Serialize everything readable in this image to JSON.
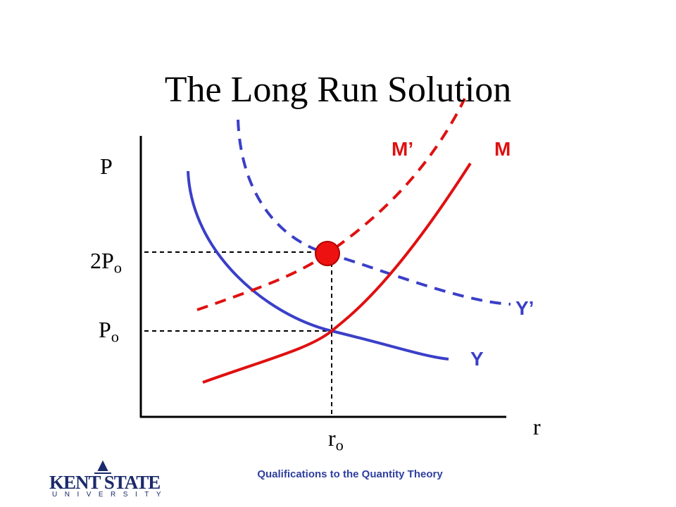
{
  "title": "The Long Run Solution",
  "axes": {
    "y_label": "P",
    "x_label": "r"
  },
  "ticks": {
    "upper_price": {
      "base": "2P",
      "sub": "o"
    },
    "lower_price": {
      "base": "P",
      "sub": "o"
    },
    "rate": {
      "base": "r",
      "sub": "o"
    }
  },
  "curves": {
    "m_prime": "M’",
    "m": "M",
    "y_prime": "Y’",
    "y": "Y"
  },
  "footer": "Qualifications to the Quantity Theory",
  "logo": {
    "name": "KENT STATE",
    "sub": "UNIVERSITY"
  }
}
